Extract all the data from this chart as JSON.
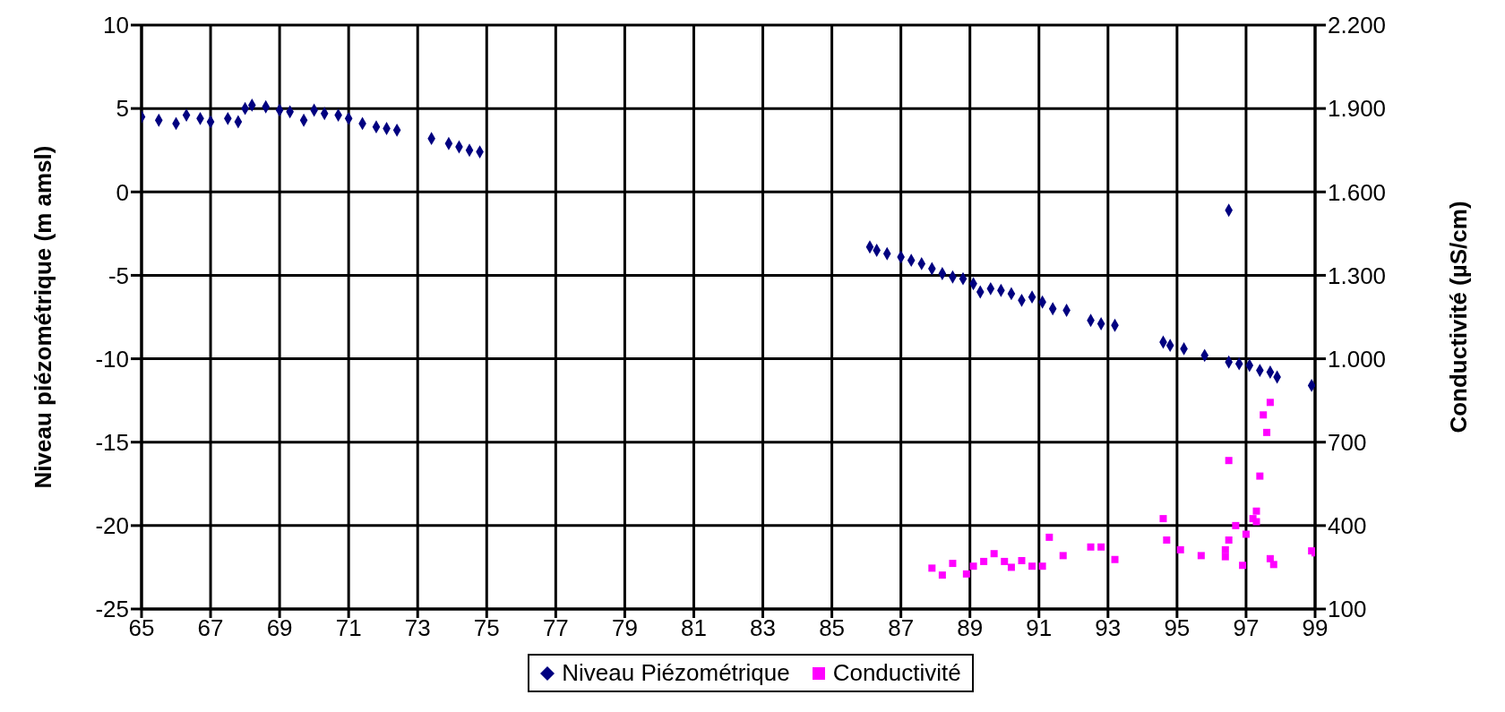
{
  "chart_data": {
    "type": "scatter",
    "xlabel": null,
    "ylabel": "Niveau piézométrique (m amsl)",
    "y2label": "Conductivité  (µS/cm)",
    "xlim": [
      65,
      99
    ],
    "xticks": [
      65,
      67,
      69,
      71,
      73,
      75,
      77,
      79,
      81,
      83,
      85,
      87,
      89,
      91,
      93,
      95,
      97,
      99
    ],
    "ylim": [
      -25,
      10
    ],
    "yticks": [
      -25,
      -20,
      -15,
      -10,
      -5,
      0,
      5,
      10
    ],
    "y2lim": [
      100,
      2200
    ],
    "y2ticks": [
      100,
      400,
      700,
      {
        "value": 1000,
        "label": "1.000"
      },
      {
        "value": 1300,
        "label": "1.300"
      },
      {
        "value": 1600,
        "label": "1.600"
      },
      {
        "value": 1900,
        "label": "1.900"
      },
      {
        "value": 2200,
        "label": "2.200"
      }
    ],
    "grid": true,
    "legend": "bottom",
    "series": [
      {
        "name": "Niveau Piézométrique",
        "color": "#000080",
        "marker": "diamond",
        "x": [
          65,
          65.5,
          66,
          66.3,
          66.7,
          67,
          67.5,
          67.8,
          68,
          68.2,
          68.6,
          69,
          69.3,
          69.7,
          70,
          70.3,
          70.7,
          71,
          71.4,
          71.8,
          72.1,
          72.4,
          73.4,
          73.9,
          74.2,
          74.5,
          74.8,
          86.1,
          86.3,
          86.6,
          87,
          87.3,
          87.6,
          87.9,
          88.2,
          88.5,
          88.8,
          89.1,
          89.3,
          89.6,
          89.9,
          90.2,
          90.5,
          90.8,
          91.1,
          91.4,
          91.8,
          92.5,
          92.8,
          93.2,
          94.6,
          94.8,
          95.2,
          95.8,
          96.5,
          96.5,
          96.8,
          97.1,
          97.4,
          97.7,
          97.9,
          98.9
        ],
        "values": [
          4.5,
          4.3,
          4.1,
          4.6,
          4.4,
          4.2,
          4.4,
          4.2,
          5.0,
          5.2,
          5.1,
          4.9,
          4.8,
          4.3,
          4.9,
          4.7,
          4.6,
          4.4,
          4.1,
          3.9,
          3.8,
          3.7,
          3.2,
          2.9,
          2.7,
          2.5,
          2.4,
          -3.3,
          -3.5,
          -3.7,
          -3.9,
          -4.1,
          -4.3,
          -4.6,
          -4.9,
          -5.1,
          -5.2,
          -5.5,
          -6.0,
          -5.8,
          -5.9,
          -6.1,
          -6.5,
          -6.3,
          -6.6,
          -7.0,
          -7.1,
          -7.7,
          -7.9,
          -8.0,
          -9.0,
          -9.2,
          -9.4,
          -9.8,
          -1.1,
          -10.2,
          -10.3,
          -10.4,
          -10.7,
          -10.8,
          -11.1,
          -11.6
        ]
      },
      {
        "name": "Conductivité",
        "color": "#ff00ff",
        "marker": "square",
        "axis": "y2",
        "x": [
          87.9,
          88.2,
          88.5,
          88.9,
          89.1,
          89.4,
          89.7,
          90,
          90.2,
          90.5,
          90.8,
          91.1,
          91.3,
          91.7,
          92.5,
          92.8,
          93.2,
          94.6,
          94.7,
          95.1,
          95.7,
          96.4,
          96.4,
          96.5,
          96.5,
          96.7,
          96.9,
          97,
          97.2,
          97.3,
          97.3,
          97.4,
          97.5,
          97.6,
          97.7,
          97.7,
          97.8,
          98.9,
          99
        ],
        "values": [
          247,
          222,
          264,
          226,
          254,
          271,
          299,
          271,
          250,
          274,
          254,
          254,
          358,
          292,
          323,
          323,
          278,
          425,
          348,
          313,
          292,
          288,
          313,
          348,
          634,
          400,
          257,
          369,
          425,
          452,
          414,
          578,
          798,
          735,
          843,
          281,
          260,
          309,
          302
        ]
      }
    ]
  }
}
